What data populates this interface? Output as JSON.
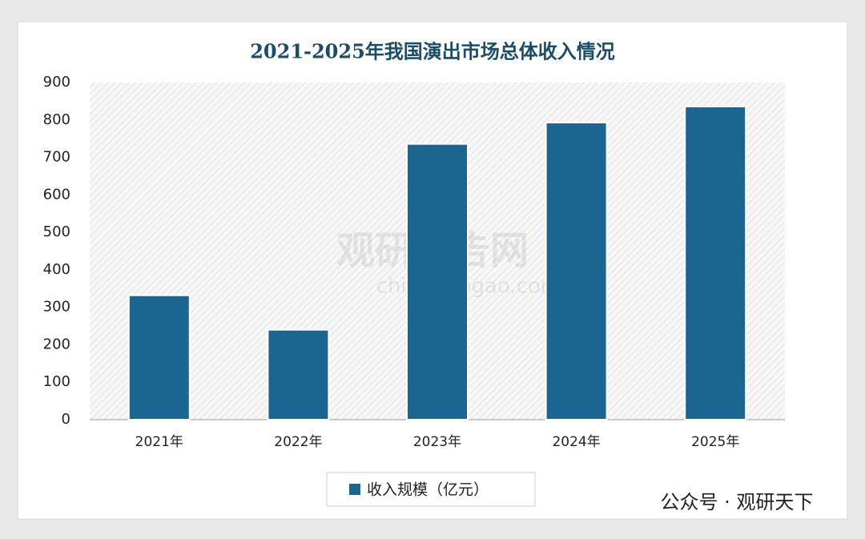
{
  "chart_data": {
    "type": "bar",
    "title": "2021-2025年我国演出市场总体收入情况",
    "categories": [
      "2021年",
      "2022年",
      "2023年",
      "2024年",
      "2025年"
    ],
    "series": [
      {
        "name": "收入规模（亿元）",
        "color": "#1b6690",
        "values": [
          332,
          240,
          736,
          793,
          836
        ]
      }
    ],
    "ylim": [
      0,
      900
    ],
    "yticks": [
      0,
      100,
      200,
      300,
      400,
      500,
      600,
      700,
      800,
      900
    ],
    "watermark": "观研报告网",
    "watermark_url": "chinabaogao.com",
    "footer": "公众号 · 观研天下"
  }
}
